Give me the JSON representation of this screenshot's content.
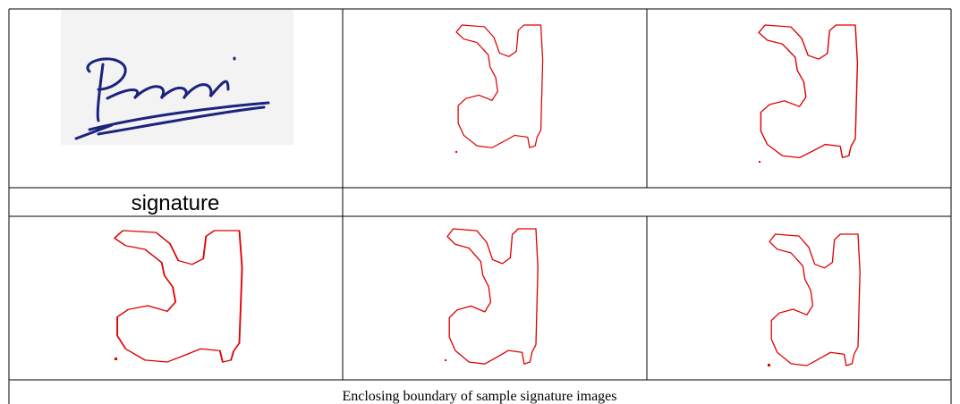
{
  "table": {
    "row_label": "signature",
    "caption": "Enclosing boundary of sample signature images"
  }
}
